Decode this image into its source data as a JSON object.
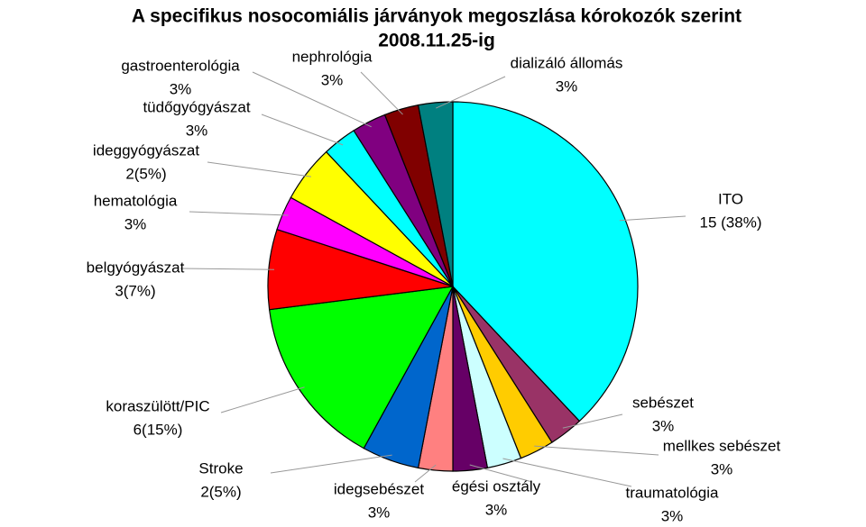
{
  "chart_data": {
    "type": "pie",
    "title": "A specifikus nosocomiális járványok megoszlása kórokozók szerint",
    "subtitle": "2008.11.25-ig",
    "categories": [
      "ITO",
      "sebészet",
      "mellkes sebészet",
      "traumatológia",
      "égési osztály",
      "idegsebészet",
      "Stroke",
      "koraszülött/PIC",
      "belgyógyászat",
      "hematológia",
      "ideggyógyászat",
      "tüdőgyógyászat",
      "gastroenterológia",
      "nephrológia",
      "dializáló állomás"
    ],
    "values": [
      38,
      3,
      3,
      3,
      3,
      3,
      5,
      15,
      7,
      3,
      5,
      3,
      3,
      3,
      3
    ],
    "value_labels": [
      "15 (38%)",
      "3%",
      "3%",
      "3%",
      "3%",
      "3%",
      "2(5%)",
      "6(15%)",
      "3(7%)",
      "3%",
      "2(5%)",
      "3%",
      "3%",
      "3%",
      "3%"
    ],
    "colors": [
      "#00ffff",
      "#993366",
      "#ffcc00",
      "#ccffff",
      "#660066",
      "#ff8080",
      "#0066cc",
      "#00ff00",
      "#ff0000",
      "#ff00ff",
      "#ffff00",
      "#00ffff",
      "#800080",
      "#800000",
      "#008080"
    ]
  }
}
